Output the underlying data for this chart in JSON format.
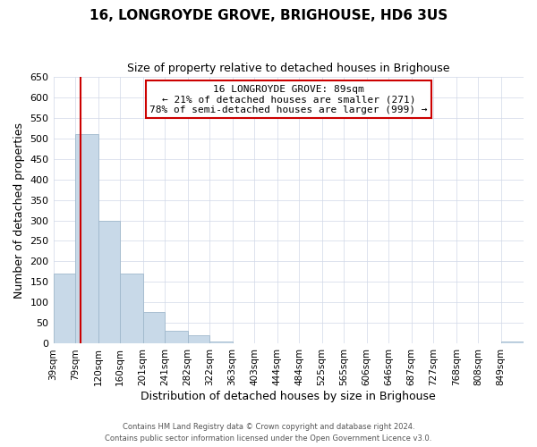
{
  "title": "16, LONGROYDE GROVE, BRIGHOUSE, HD6 3US",
  "subtitle": "Size of property relative to detached houses in Brighouse",
  "xlabel": "Distribution of detached houses by size in Brighouse",
  "ylabel": "Number of detached properties",
  "bar_labels": [
    "39sqm",
    "79sqm",
    "120sqm",
    "160sqm",
    "201sqm",
    "241sqm",
    "282sqm",
    "322sqm",
    "363sqm",
    "403sqm",
    "444sqm",
    "484sqm",
    "525sqm",
    "565sqm",
    "606sqm",
    "646sqm",
    "687sqm",
    "727sqm",
    "768sqm",
    "808sqm",
    "849sqm"
  ],
  "bar_values": [
    170,
    510,
    300,
    170,
    78,
    32,
    20,
    5,
    0,
    0,
    0,
    0,
    0,
    0,
    0,
    0,
    0,
    0,
    0,
    0,
    5
  ],
  "bar_color": "#c8d9e8",
  "bar_edgecolor": "#a0b8cc",
  "vline_x": 89,
  "vline_color": "#cc0000",
  "annotation_title": "16 LONGROYDE GROVE: 89sqm",
  "annotation_line1": "← 21% of detached houses are smaller (271)",
  "annotation_line2": "78% of semi-detached houses are larger (999) →",
  "annotation_box_color": "#cc0000",
  "ylim": [
    0,
    650
  ],
  "yticks": [
    0,
    50,
    100,
    150,
    200,
    250,
    300,
    350,
    400,
    450,
    500,
    550,
    600,
    650
  ],
  "footer1": "Contains HM Land Registry data © Crown copyright and database right 2024.",
  "footer2": "Contains public sector information licensed under the Open Government Licence v3.0.",
  "grid_color": "#d0d8e8"
}
